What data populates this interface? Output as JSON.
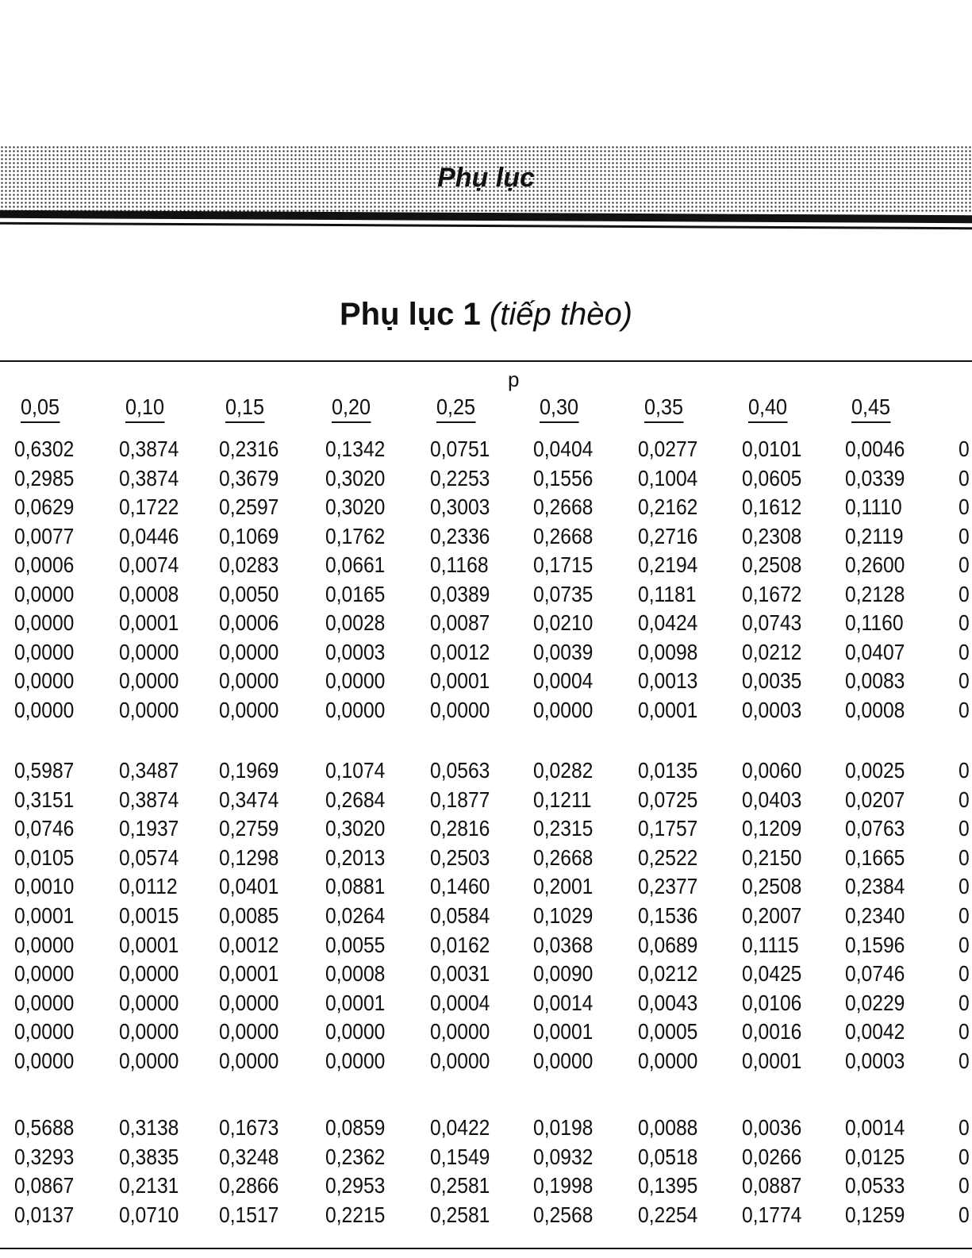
{
  "header": {
    "running_title": "Phụ lục"
  },
  "title": {
    "main": "Phụ lục 1",
    "suffix": "(tiếp thèo)"
  },
  "table": {
    "p_label": "p",
    "columns": [
      "0,05",
      "0,10",
      "0,15",
      "0,20",
      "0,25",
      "0,30",
      "0,35",
      "0,40",
      "0,45"
    ],
    "clipped_column_glyph": "0",
    "groups": [
      [
        [
          "0,6302",
          "0,3874",
          "0,2316",
          "0,1342",
          "0,0751",
          "0,0404",
          "0,0277",
          "0,0101",
          "0,0046"
        ],
        [
          "0,2985",
          "0,3874",
          "0,3679",
          "0,3020",
          "0,2253",
          "0,1556",
          "0,1004",
          "0,0605",
          "0,0339"
        ],
        [
          "0,0629",
          "0,1722",
          "0,2597",
          "0,3020",
          "0,3003",
          "0,2668",
          "0,2162",
          "0,1612",
          "0,1110"
        ],
        [
          "0,0077",
          "0,0446",
          "0,1069",
          "0,1762",
          "0,2336",
          "0,2668",
          "0,2716",
          "0,2308",
          "0,2119"
        ],
        [
          "0,0006",
          "0,0074",
          "0,0283",
          "0,0661",
          "0,1168",
          "0,1715",
          "0,2194",
          "0,2508",
          "0,2600"
        ],
        [
          "0,0000",
          "0,0008",
          "0,0050",
          "0,0165",
          "0,0389",
          "0,0735",
          "0,1181",
          "0,1672",
          "0,2128"
        ],
        [
          "0,0000",
          "0,0001",
          "0,0006",
          "0,0028",
          "0,0087",
          "0,0210",
          "0,0424",
          "0,0743",
          "0,1160"
        ],
        [
          "0,0000",
          "0,0000",
          "0,0000",
          "0,0003",
          "0,0012",
          "0,0039",
          "0,0098",
          "0,0212",
          "0,0407"
        ],
        [
          "0,0000",
          "0,0000",
          "0,0000",
          "0,0000",
          "0,0001",
          "0,0004",
          "0,0013",
          "0,0035",
          "0,0083"
        ],
        [
          "0,0000",
          "0,0000",
          "0,0000",
          "0,0000",
          "0,0000",
          "0,0000",
          "0,0001",
          "0,0003",
          "0,0008"
        ]
      ],
      [
        [
          "0,5987",
          "0,3487",
          "0,1969",
          "0,1074",
          "0,0563",
          "0,0282",
          "0,0135",
          "0,0060",
          "0,0025"
        ],
        [
          "0,3151",
          "0,3874",
          "0,3474",
          "0,2684",
          "0,1877",
          "0,1211",
          "0,0725",
          "0,0403",
          "0,0207"
        ],
        [
          "0,0746",
          "0,1937",
          "0,2759",
          "0,3020",
          "0,2816",
          "0,2315",
          "0,1757",
          "0,1209",
          "0,0763"
        ],
        [
          "0,0105",
          "0,0574",
          "0,1298",
          "0,2013",
          "0,2503",
          "0,2668",
          "0,2522",
          "0,2150",
          "0,1665"
        ],
        [
          "0,0010",
          "0,0112",
          "0,0401",
          "0,0881",
          "0,1460",
          "0,2001",
          "0,2377",
          "0,2508",
          "0,2384"
        ],
        [
          "0,0001",
          "0,0015",
          "0,0085",
          "0,0264",
          "0,0584",
          "0,1029",
          "0,1536",
          "0,2007",
          "0,2340"
        ],
        [
          "0,0000",
          "0,0001",
          "0,0012",
          "0,0055",
          "0,0162",
          "0,0368",
          "0,0689",
          "0,1115",
          "0,1596"
        ],
        [
          "0,0000",
          "0,0000",
          "0,0001",
          "0,0008",
          "0,0031",
          "0,0090",
          "0,0212",
          "0,0425",
          "0,0746"
        ],
        [
          "0,0000",
          "0,0000",
          "0,0000",
          "0,0001",
          "0,0004",
          "0,0014",
          "0,0043",
          "0,0106",
          "0,0229"
        ],
        [
          "0,0000",
          "0,0000",
          "0,0000",
          "0,0000",
          "0,0000",
          "0,0001",
          "0,0005",
          "0,0016",
          "0,0042"
        ],
        [
          "0,0000",
          "0,0000",
          "0,0000",
          "0,0000",
          "0,0000",
          "0,0000",
          "0,0000",
          "0,0001",
          "0,0003"
        ]
      ],
      [
        [
          "0,5688",
          "0,3138",
          "0,1673",
          "0,0859",
          "0,0422",
          "0,0198",
          "0,0088",
          "0,0036",
          "0,0014"
        ],
        [
          "0,3293",
          "0,3835",
          "0,3248",
          "0,2362",
          "0,1549",
          "0,0932",
          "0,0518",
          "0,0266",
          "0,0125"
        ],
        [
          "0,0867",
          "0,2131",
          "0,2866",
          "0,2953",
          "0,2581",
          "0,1998",
          "0,1395",
          "0,0887",
          "0,0533"
        ],
        [
          "0,0137",
          "0,0710",
          "0,1517",
          "0,2215",
          "0,2581",
          "0,2568",
          "0,2254",
          "0,1774",
          "0,1259"
        ]
      ]
    ]
  }
}
